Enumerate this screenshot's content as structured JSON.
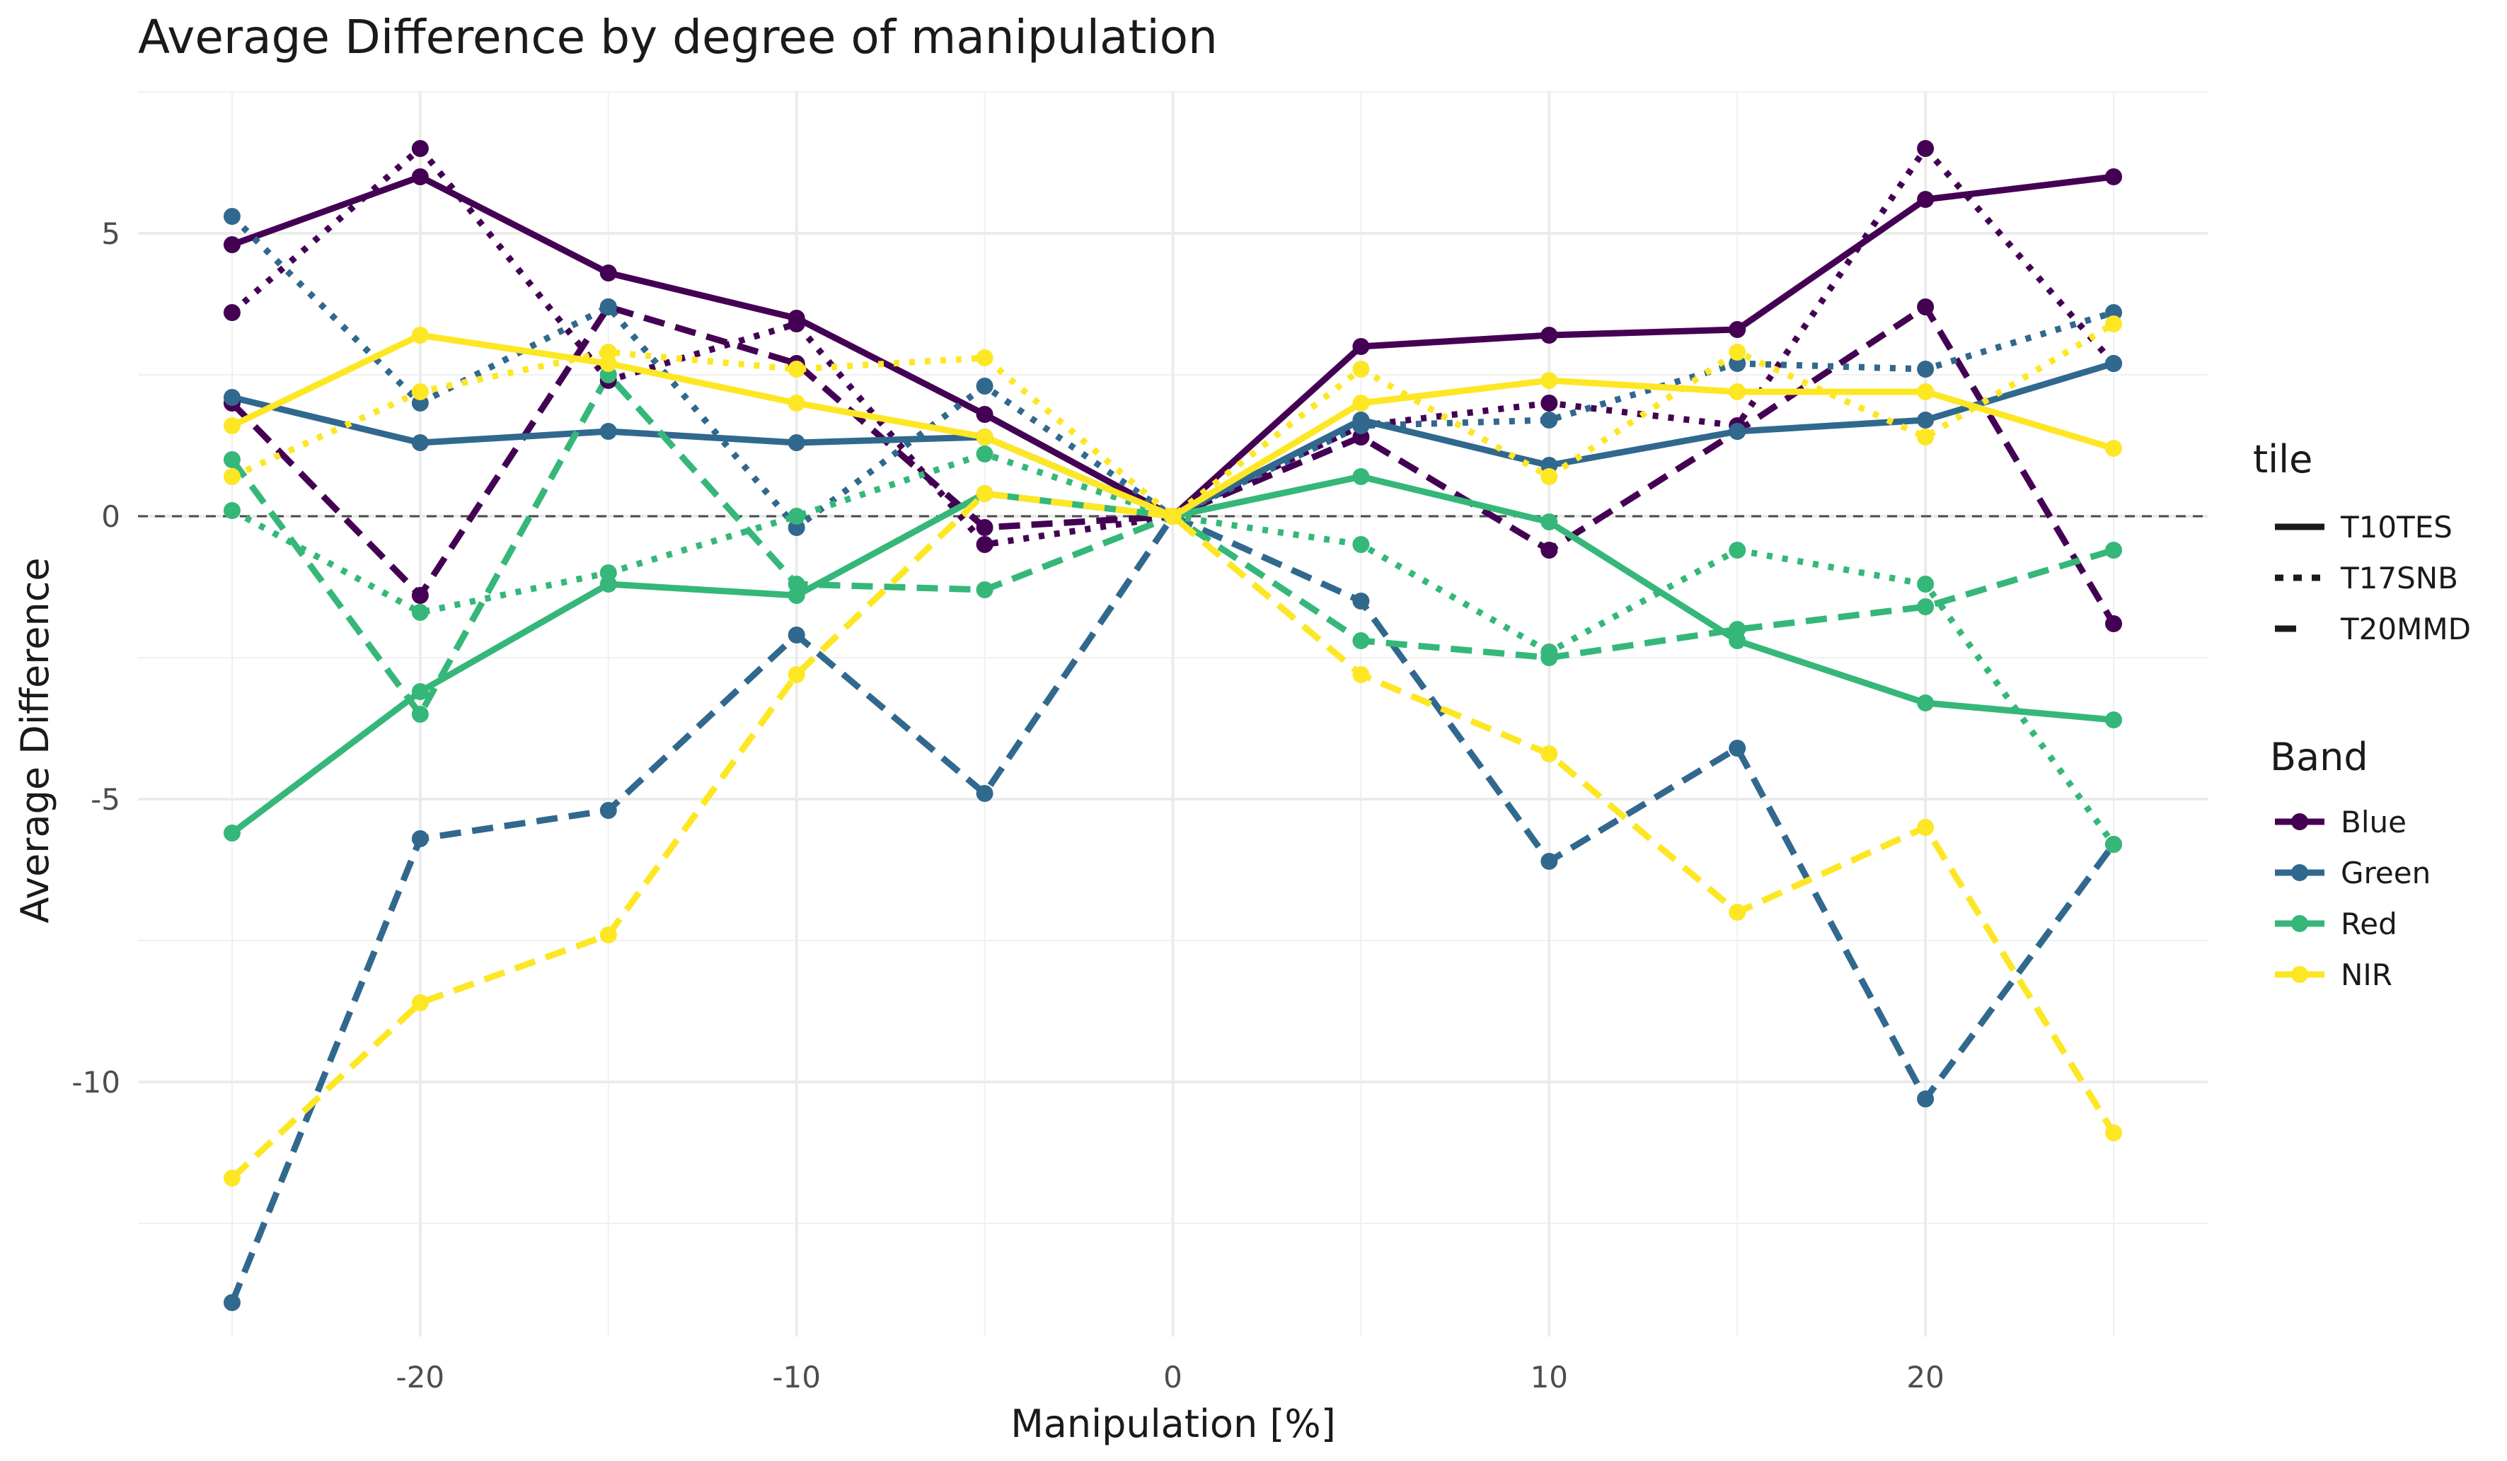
{
  "chart_data": {
    "type": "line",
    "title": "Average Difference by degree of manipulation",
    "xlabel": "Manipulation [%]",
    "ylabel": "Average Difference",
    "xlim": [
      -27.5,
      27.5
    ],
    "ylim": [
      -14.5,
      7.5
    ],
    "x_ticks": [
      -20,
      -10,
      0,
      10,
      20
    ],
    "y_ticks": [
      5,
      0,
      -5,
      -10
    ],
    "x_tick_labels": [
      "-20",
      "-10",
      "0",
      "10",
      "20"
    ],
    "y_tick_labels": [
      "5",
      "0",
      "-5",
      "-10"
    ],
    "x_minor_ticks": [
      -25,
      -15,
      -5,
      5,
      15,
      25
    ],
    "y_minor_ticks": [
      7.5,
      2.5,
      -2.5,
      -7.5,
      -12.5
    ],
    "reference_line": {
      "y": 0,
      "style": "dashed",
      "color": "#4d4d4d"
    },
    "grid": true,
    "legend_position": "right",
    "x": [
      -25,
      -20,
      -15,
      -10,
      -5,
      0,
      5,
      10,
      15,
      20,
      25
    ],
    "legend": {
      "tile": {
        "title": "tile",
        "items": [
          {
            "label": "T10TES",
            "dash": "solid"
          },
          {
            "label": "T17SNB",
            "dash": "dotted"
          },
          {
            "label": "T20MMD",
            "dash": "dashed"
          }
        ]
      },
      "band": {
        "title": "Band",
        "items": [
          {
            "label": "Blue",
            "color": "#440154"
          },
          {
            "label": "Green",
            "color": "#31688e"
          },
          {
            "label": "Red",
            "color": "#35b779"
          },
          {
            "label": "NIR",
            "color": "#fde725"
          }
        ]
      }
    },
    "series": [
      {
        "band": "Blue",
        "tile": "T10TES",
        "color": "#440154",
        "dash": "solid",
        "values": [
          4.8,
          6.0,
          4.3,
          3.5,
          1.8,
          0,
          3.0,
          3.2,
          3.3,
          5.6,
          6.0
        ]
      },
      {
        "band": "Blue",
        "tile": "T17SNB",
        "color": "#440154",
        "dash": "dotted",
        "values": [
          3.6,
          6.5,
          2.4,
          3.4,
          -0.5,
          0,
          1.6,
          2.0,
          1.6,
          6.5,
          2.7
        ]
      },
      {
        "band": "Blue",
        "tile": "T20MMD",
        "color": "#440154",
        "dash": "dashed",
        "values": [
          2.0,
          -1.4,
          3.7,
          2.7,
          -0.2,
          0,
          1.4,
          -0.6,
          1.5,
          3.7,
          -1.9
        ]
      },
      {
        "band": "Green",
        "tile": "T10TES",
        "color": "#31688e",
        "dash": "solid",
        "values": [
          2.1,
          1.3,
          1.5,
          1.3,
          1.4,
          0,
          1.7,
          0.9,
          1.5,
          1.7,
          2.7
        ]
      },
      {
        "band": "Green",
        "tile": "T17SNB",
        "color": "#31688e",
        "dash": "dotted",
        "values": [
          5.3,
          2.0,
          3.7,
          -0.2,
          2.3,
          0,
          1.6,
          1.7,
          2.7,
          2.6,
          3.6
        ]
      },
      {
        "band": "Green",
        "tile": "T20MMD",
        "color": "#31688e",
        "dash": "dashed",
        "values": [
          -13.9,
          -5.7,
          -5.2,
          -2.1,
          -4.9,
          0,
          -1.5,
          -6.1,
          -4.1,
          -10.3,
          -5.8
        ]
      },
      {
        "band": "Red",
        "tile": "T10TES",
        "color": "#35b779",
        "dash": "solid",
        "values": [
          -5.6,
          -3.1,
          -1.2,
          -1.4,
          0.4,
          0,
          0.7,
          -0.1,
          -2.2,
          -3.3,
          -3.6
        ]
      },
      {
        "band": "Red",
        "tile": "T17SNB",
        "color": "#35b779",
        "dash": "dotted",
        "values": [
          0.1,
          -1.7,
          -1.0,
          0.0,
          1.1,
          0,
          -0.5,
          -2.4,
          -0.6,
          -1.2,
          -5.8
        ]
      },
      {
        "band": "Red",
        "tile": "T20MMD",
        "color": "#35b779",
        "dash": "dashed",
        "values": [
          1.0,
          -3.5,
          2.5,
          -1.2,
          -1.3,
          0,
          -2.2,
          -2.5,
          -2.0,
          -1.6,
          -0.6
        ]
      },
      {
        "band": "NIR",
        "tile": "T10TES",
        "color": "#fde725",
        "dash": "solid",
        "values": [
          1.6,
          3.2,
          2.7,
          2.0,
          1.4,
          0,
          2.0,
          2.4,
          2.2,
          2.2,
          1.2
        ]
      },
      {
        "band": "NIR",
        "tile": "T17SNB",
        "color": "#fde725",
        "dash": "dotted",
        "values": [
          0.7,
          2.2,
          2.9,
          2.6,
          2.8,
          0,
          2.6,
          0.7,
          2.9,
          1.4,
          3.4
        ]
      },
      {
        "band": "NIR",
        "tile": "T20MMD",
        "color": "#fde725",
        "dash": "dashed",
        "values": [
          -11.7,
          -8.6,
          -7.4,
          -2.8,
          0.4,
          0,
          -2.8,
          -4.2,
          -7.0,
          -5.5,
          -10.9
        ]
      }
    ]
  }
}
